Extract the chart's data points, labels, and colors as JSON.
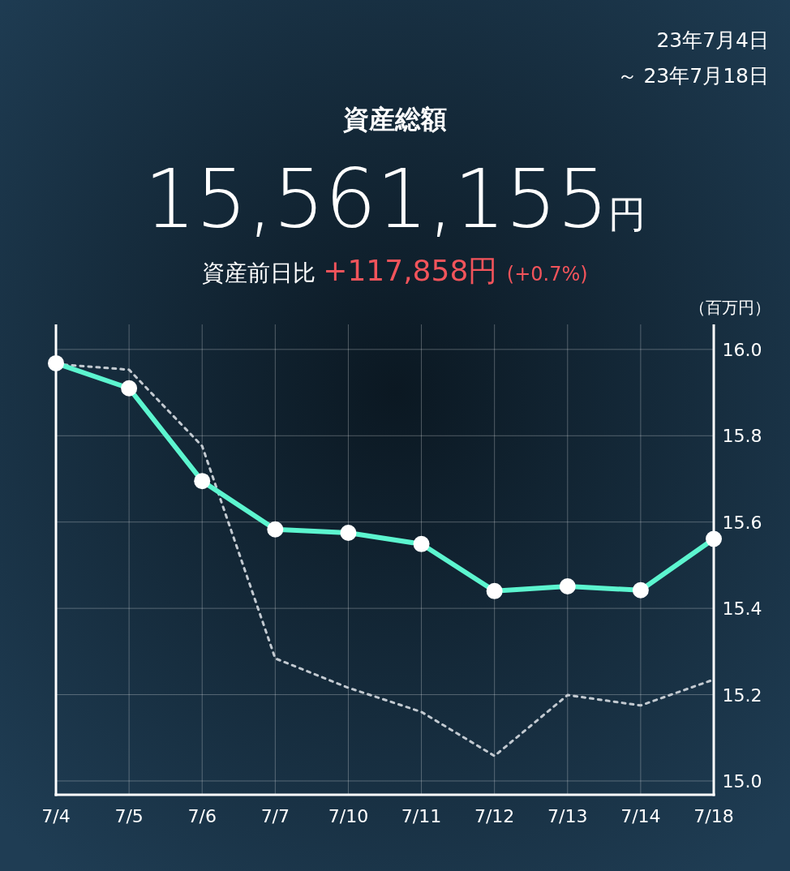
{
  "chart_data": {
    "type": "line",
    "title": "資産総額",
    "annotations": [
      "23年7月4日",
      "～ 23年7月18日",
      "15,561,155円",
      "資産前日比",
      "+117,858円",
      "(+0.7%)"
    ],
    "categories": [
      "7/4",
      "7/5",
      "7/6",
      "7/7",
      "7/10",
      "7/11",
      "7/12",
      "7/13",
      "7/14",
      "7/18"
    ],
    "series": [
      {
        "color": "#c3cad1",
        "marker": "none",
        "line_style": "dotted",
        "values": [
          15.966,
          15.953,
          15.776,
          15.284,
          15.216,
          15.16,
          15.058,
          15.199,
          15.175,
          15.235
        ]
      },
      {
        "color": "#5cf5cf",
        "marker": "circle",
        "line_style": "solid",
        "values": [
          15.968,
          15.91,
          15.695,
          15.583,
          15.575,
          15.549,
          15.44,
          15.451,
          15.442,
          15.561
        ]
      }
    ],
    "ylabel": "（百万円）",
    "ylim": [
      14.968,
      16.058
    ],
    "yticks": [
      {
        "value": 15,
        "label": "15.0"
      },
      15.2,
      15.4,
      15.6,
      15.8,
      {
        "value": 16,
        "label": "16.0"
      }
    ],
    "grid": true
  }
}
